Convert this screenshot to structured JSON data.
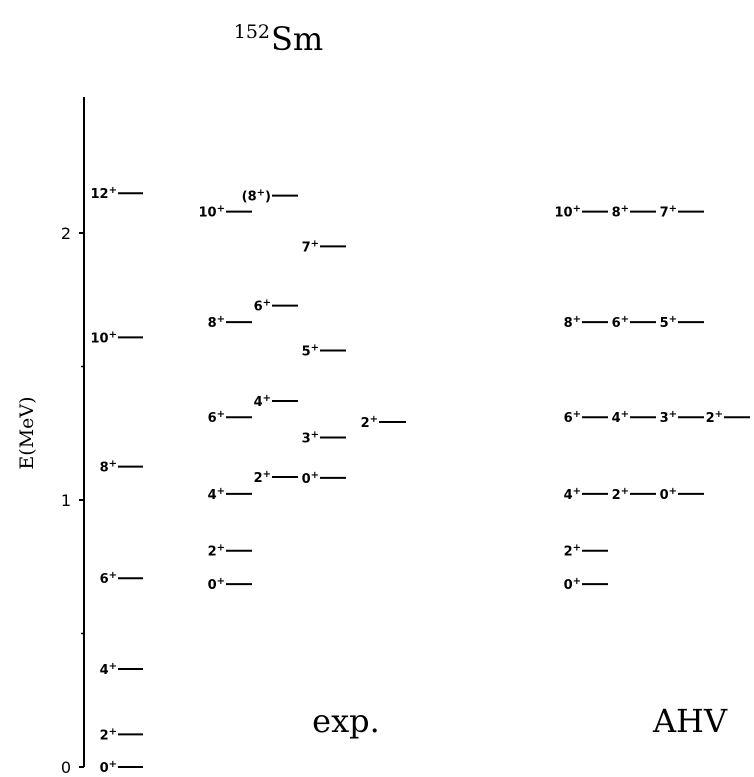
{
  "chart_data": {
    "type": "level-scheme",
    "title": {
      "prefix": "152",
      "text": "Sm"
    },
    "ylabel": "E(MeV)",
    "ylim": [
      0,
      2.5
    ],
    "yticks": [
      {
        "value": 0,
        "label": "0"
      },
      {
        "value": 1,
        "label": "1"
      },
      {
        "value": 2,
        "label": "2"
      }
    ],
    "yminor_ticks": [
      0.5,
      1.5
    ],
    "panels": [
      {
        "name": "exp.",
        "column": "exp"
      },
      {
        "name": "AHV",
        "column": "ahv"
      }
    ],
    "columns": [
      {
        "id": "ground",
        "levels": [
          {
            "label": "0",
            "parity": "+",
            "energy": 0.0
          },
          {
            "label": "2",
            "parity": "+",
            "energy": 0.122
          },
          {
            "label": "4",
            "parity": "+",
            "energy": 0.367
          },
          {
            "label": "6",
            "parity": "+",
            "energy": 0.707
          },
          {
            "label": "8",
            "parity": "+",
            "energy": 1.125
          },
          {
            "label": "10",
            "parity": "+",
            "energy": 1.609
          },
          {
            "label": "12",
            "parity": "+",
            "energy": 2.149
          }
        ]
      },
      {
        "id": "exp-band1",
        "levels": [
          {
            "label": "0",
            "parity": "+",
            "energy": 0.685
          },
          {
            "label": "2",
            "parity": "+",
            "energy": 0.81
          },
          {
            "label": "4",
            "parity": "+",
            "energy": 1.023
          },
          {
            "label": "6",
            "parity": "+",
            "energy": 1.31
          },
          {
            "label": "8",
            "parity": "+",
            "energy": 1.666
          },
          {
            "label": "10",
            "parity": "+",
            "energy": 2.08
          }
        ]
      },
      {
        "id": "exp-band2",
        "levels": [
          {
            "label": "2",
            "parity": "+",
            "energy": 1.086
          },
          {
            "label": "4",
            "parity": "+",
            "energy": 1.371
          },
          {
            "label": "6",
            "parity": "+",
            "energy": 1.728
          },
          {
            "label": "(8",
            "parity": "+",
            "suffix": ")",
            "energy": 2.14
          }
        ]
      },
      {
        "id": "exp-band3",
        "levels": [
          {
            "label": "0",
            "parity": "+",
            "energy": 1.083
          },
          {
            "label": "3",
            "parity": "+",
            "energy": 1.234
          },
          {
            "label": "5",
            "parity": "+",
            "energy": 1.56
          },
          {
            "label": "7",
            "parity": "+",
            "energy": 1.95
          }
        ]
      },
      {
        "id": "exp-band4",
        "levels": [
          {
            "label": "2",
            "parity": "+",
            "energy": 1.292
          }
        ]
      },
      {
        "id": "ahv-c1",
        "levels": [
          {
            "label": "0",
            "parity": "+",
            "energy": 0.685
          },
          {
            "label": "2",
            "parity": "+",
            "energy": 0.81
          },
          {
            "label": "4",
            "parity": "+",
            "energy": 1.023
          },
          {
            "label": "6",
            "parity": "+",
            "energy": 1.31
          },
          {
            "label": "8",
            "parity": "+",
            "energy": 1.666
          },
          {
            "label": "10",
            "parity": "+",
            "energy": 2.08
          }
        ]
      },
      {
        "id": "ahv-c2",
        "levels": [
          {
            "label": "2",
            "parity": "+",
            "energy": 1.023
          },
          {
            "label": "4",
            "parity": "+",
            "energy": 1.31
          },
          {
            "label": "6",
            "parity": "+",
            "energy": 1.666
          },
          {
            "label": "8",
            "parity": "+",
            "energy": 2.08
          }
        ]
      },
      {
        "id": "ahv-c3",
        "levels": [
          {
            "label": "0",
            "parity": "+",
            "energy": 1.023
          },
          {
            "label": "3",
            "parity": "+",
            "energy": 1.31
          },
          {
            "label": "5",
            "parity": "+",
            "energy": 1.666
          },
          {
            "label": "7",
            "parity": "+",
            "energy": 2.08
          }
        ]
      },
      {
        "id": "ahv-c4",
        "levels": [
          {
            "label": "2",
            "parity": "+",
            "energy": 1.31
          }
        ]
      }
    ]
  }
}
